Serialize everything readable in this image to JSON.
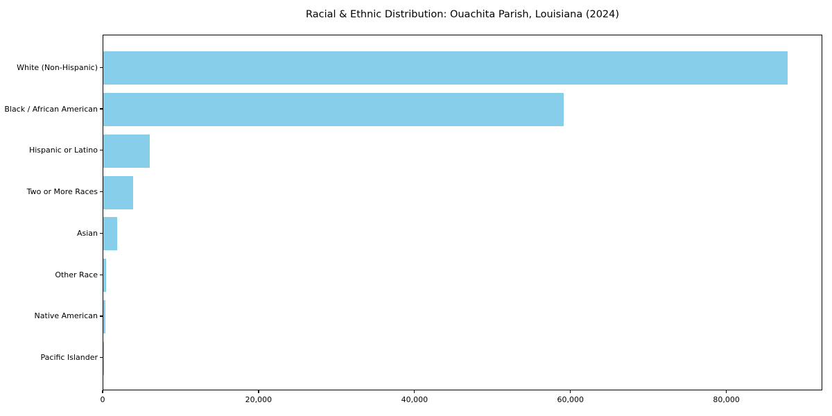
{
  "title": "Racial & Ethnic Distribution: Ouachita Parish, Louisiana (2024)",
  "chart_data": {
    "type": "bar",
    "orientation": "horizontal",
    "title": "Racial & Ethnic Distribution: Ouachita Parish, Louisiana (2024)",
    "categories": [
      "White (Non-Hispanic)",
      "Black / African American",
      "Hispanic or Latino",
      "Two or More Races",
      "Asian",
      "Other Race",
      "Native American",
      "Pacific Islander"
    ],
    "values": [
      87800,
      59000,
      6000,
      3800,
      1800,
      400,
      250,
      70
    ],
    "xlabel": "",
    "ylabel": "",
    "xlim": [
      0,
      92300
    ],
    "xticks": [
      0,
      20000,
      40000,
      60000,
      80000
    ],
    "xtick_labels": [
      "0",
      "20,000",
      "40,000",
      "60,000",
      "80,000"
    ],
    "bar_color": "#87CEEB",
    "spine_color": "#000000",
    "text_color": "#000000",
    "grid": false,
    "legend": "none"
  }
}
